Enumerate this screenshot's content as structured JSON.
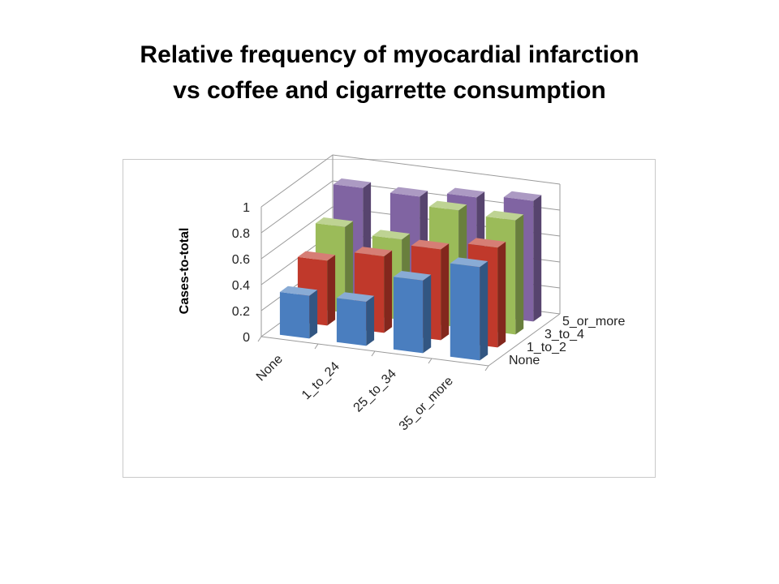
{
  "title_lines": [
    "Relative frequency of myocardial infarction",
    "vs coffee and cigarrette consumption"
  ],
  "chart_data": {
    "type": "bar",
    "subtype": "3d-column",
    "categories": [
      "None",
      "1_to_24",
      "25_to_34",
      "35_or_more"
    ],
    "series": [
      {
        "name": "None",
        "color": "#4a7ebf",
        "values": [
          0.33,
          0.34,
          0.56,
          0.72
        ]
      },
      {
        "name": "1_to_2",
        "color": "#c0392b",
        "values": [
          0.5,
          0.59,
          0.7,
          0.77
        ]
      },
      {
        "name": "3_to_4",
        "color": "#9bbb59",
        "values": [
          0.66,
          0.62,
          0.9,
          0.88
        ]
      },
      {
        "name": "5_or_more",
        "color": "#8064a2",
        "values": [
          0.86,
          0.85,
          0.9,
          0.93
        ]
      }
    ],
    "depth_labels": [
      "5_or_more",
      "3_to_4",
      "1_to_2",
      "None"
    ],
    "ylabel": "Cases-to-total",
    "xlabel": "",
    "yticks": [
      "0",
      "0.2",
      "0.4",
      "0.6",
      "0.8",
      "1"
    ],
    "ylim": [
      0,
      1
    ],
    "grid": true,
    "legend": "none"
  }
}
